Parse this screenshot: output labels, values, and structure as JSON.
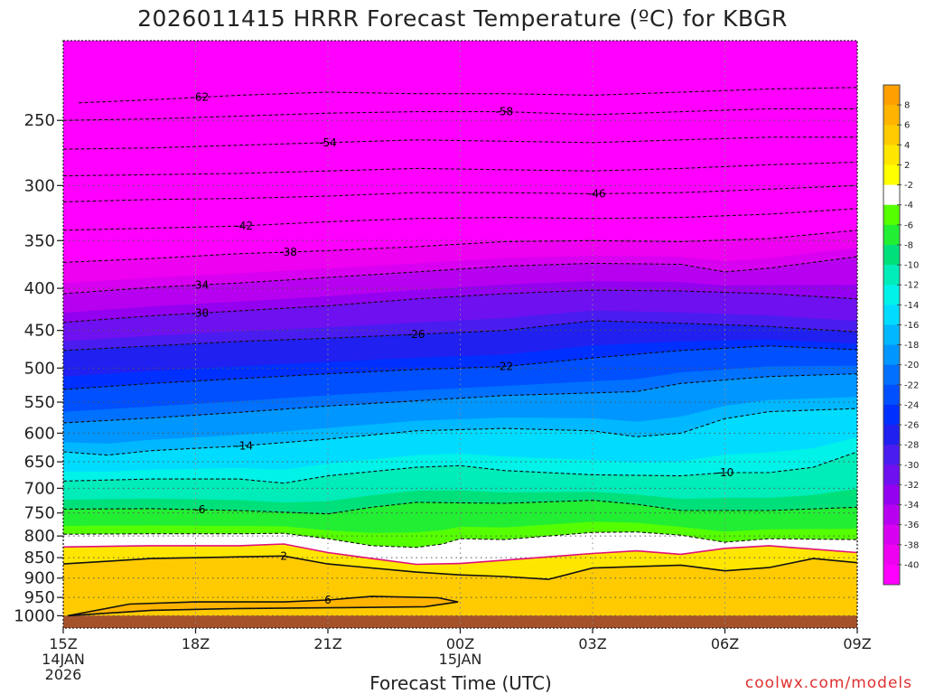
{
  "chart_data": {
    "type": "heatmap",
    "title": "2026011415 HRRR Forecast Temperature (ºC) for KBGR",
    "xlabel": "Forecast Time (UTC)",
    "ylabel": "",
    "credit": "coolwx.com/models",
    "x_ticks": [
      {
        "hour": 0,
        "label": "15Z",
        "sub": [
          "14JAN",
          "2026"
        ]
      },
      {
        "hour": 3,
        "label": "18Z",
        "sub": []
      },
      {
        "hour": 6,
        "label": "21Z",
        "sub": []
      },
      {
        "hour": 9,
        "label": "00Z",
        "sub": [
          "15JAN"
        ]
      },
      {
        "hour": 12,
        "label": "03Z",
        "sub": []
      },
      {
        "hour": 15,
        "label": "06Z",
        "sub": []
      },
      {
        "hour": 18,
        "label": "09Z",
        "sub": []
      }
    ],
    "xlim": [
      0,
      18
    ],
    "y_ticks": [
      250,
      300,
      350,
      400,
      450,
      500,
      550,
      600,
      650,
      700,
      750,
      800,
      850,
      900,
      950,
      1000
    ],
    "ylim": [
      1035,
      200
    ],
    "y_scale": "log",
    "colorbar": {
      "labels": [
        "8",
        "6",
        "4",
        "2",
        "-2",
        "-4",
        "-6",
        "-8",
        "-10",
        "-12",
        "-14",
        "-16",
        "-18",
        "-20",
        "-22",
        "-24",
        "-26",
        "-28",
        "-30",
        "-32",
        "-34",
        "-36",
        "-38",
        "-40"
      ],
      "colors": [
        "#ffa000",
        "#ffb400",
        "#ffcb00",
        "#ffe600",
        "#ffff00",
        "#ffffff",
        "#55ff00",
        "#22ee33",
        "#00e07a",
        "#00ecb8",
        "#00f2e8",
        "#00dcff",
        "#00b8ff",
        "#0096ff",
        "#0070ff",
        "#0050ff",
        "#0030ff",
        "#2020f0",
        "#4a1cf0",
        "#6e10f0",
        "#9400f0",
        "#b800f0",
        "#d800f0",
        "#ee00f0",
        "#ff00ff"
      ]
    },
    "contours": [
      {
        "label": "-62",
        "label_x": 3.1,
        "pts": [
          [
            0.35,
            238
          ],
          [
            2,
            236
          ],
          [
            4,
            233
          ],
          [
            6,
            231
          ],
          [
            8,
            232
          ],
          [
            10,
            232
          ],
          [
            12,
            233
          ],
          [
            14,
            231
          ],
          [
            16,
            229
          ],
          [
            18,
            228
          ]
        ]
      },
      {
        "label": "-58",
        "label_x": 10.0,
        "pts": [
          [
            0,
            250
          ],
          [
            2,
            249
          ],
          [
            4,
            247
          ],
          [
            6,
            245
          ],
          [
            8,
            244
          ],
          [
            10,
            244
          ],
          [
            12,
            246
          ],
          [
            14,
            244
          ],
          [
            16,
            242
          ],
          [
            18,
            242
          ]
        ]
      },
      {
        "label": "-54",
        "label_x": 6.0,
        "pts": [
          [
            0,
            271
          ],
          [
            2,
            270
          ],
          [
            4,
            268
          ],
          [
            6,
            266
          ],
          [
            8,
            264
          ],
          [
            10,
            265
          ],
          [
            12,
            266
          ],
          [
            14,
            264
          ],
          [
            16,
            262
          ],
          [
            18,
            262
          ]
        ]
      },
      {
        "label": "",
        "label_x": 0,
        "pts": [
          [
            0,
            292
          ],
          [
            2,
            291
          ],
          [
            4,
            290
          ],
          [
            6,
            288
          ],
          [
            8,
            286
          ],
          [
            10,
            287
          ],
          [
            12,
            288
          ],
          [
            14,
            286
          ],
          [
            16,
            283
          ],
          [
            18,
            281
          ]
        ]
      },
      {
        "label": "-46",
        "label_x": 12.1,
        "pts": [
          [
            0,
            314
          ],
          [
            2,
            312
          ],
          [
            4,
            311
          ],
          [
            6,
            309
          ],
          [
            8,
            306
          ],
          [
            10,
            306
          ],
          [
            12,
            307
          ],
          [
            14,
            306
          ],
          [
            16,
            303
          ],
          [
            18,
            300
          ]
        ]
      },
      {
        "label": "-42",
        "label_x": 4.1,
        "pts": [
          [
            0,
            340
          ],
          [
            2,
            338
          ],
          [
            4,
            336
          ],
          [
            6,
            332
          ],
          [
            8,
            329
          ],
          [
            10,
            328
          ],
          [
            12,
            329
          ],
          [
            14,
            328
          ],
          [
            16,
            325
          ],
          [
            18,
            320
          ]
        ]
      },
      {
        "label": "-38",
        "label_x": 5.1,
        "pts": [
          [
            0,
            372
          ],
          [
            2,
            368
          ],
          [
            4,
            363
          ],
          [
            6,
            360
          ],
          [
            8,
            356
          ],
          [
            10,
            351
          ],
          [
            12,
            350
          ],
          [
            14,
            351
          ],
          [
            16,
            348
          ],
          [
            18,
            340
          ]
        ]
      },
      {
        "label": "-34",
        "label_x": 3.1,
        "pts": [
          [
            0,
            406
          ],
          [
            2,
            399
          ],
          [
            4,
            394
          ],
          [
            6,
            388
          ],
          [
            8,
            382
          ],
          [
            10,
            376
          ],
          [
            12,
            373
          ],
          [
            14,
            374
          ],
          [
            15,
            382
          ],
          [
            16,
            378
          ],
          [
            18,
            366
          ]
        ]
      },
      {
        "label": "-30",
        "label_x": 3.1,
        "pts": [
          [
            0,
            440
          ],
          [
            2,
            432
          ],
          [
            4,
            426
          ],
          [
            6,
            420
          ],
          [
            8,
            412
          ],
          [
            10,
            406
          ],
          [
            12,
            402
          ],
          [
            14,
            403
          ],
          [
            16,
            406
          ],
          [
            18,
            412
          ]
        ]
      },
      {
        "label": "-26",
        "label_x": 8.0,
        "pts": [
          [
            0,
            476
          ],
          [
            2,
            470
          ],
          [
            4,
            464
          ],
          [
            6,
            460
          ],
          [
            8,
            455
          ],
          [
            10,
            450
          ],
          [
            12,
            438
          ],
          [
            14,
            441
          ],
          [
            16,
            445
          ],
          [
            18,
            452
          ]
        ]
      },
      {
        "label": "-22",
        "label_x": 10.0,
        "pts": [
          [
            0,
            531
          ],
          [
            2,
            522
          ],
          [
            4,
            515
          ],
          [
            6,
            508
          ],
          [
            8,
            502
          ],
          [
            10,
            498
          ],
          [
            11,
            492
          ],
          [
            12,
            486
          ],
          [
            14,
            476
          ],
          [
            16,
            470
          ],
          [
            18,
            475
          ]
        ]
      },
      {
        "label": "",
        "label_x": 0,
        "pts": [
          [
            0,
            583
          ],
          [
            2,
            575
          ],
          [
            4,
            566
          ],
          [
            6,
            556
          ],
          [
            8,
            548
          ],
          [
            10,
            540
          ],
          [
            12,
            536
          ],
          [
            13,
            534
          ],
          [
            14,
            522
          ],
          [
            16,
            512
          ],
          [
            18,
            508
          ]
        ]
      },
      {
        "label": "-14",
        "label_x": 4.1,
        "pts": [
          [
            0,
            632
          ],
          [
            1,
            638
          ],
          [
            2,
            630
          ],
          [
            4,
            622
          ],
          [
            6,
            610
          ],
          [
            8,
            596
          ],
          [
            10,
            592
          ],
          [
            12,
            596
          ],
          [
            13,
            606
          ],
          [
            14,
            600
          ],
          [
            15,
            576
          ],
          [
            16,
            565
          ],
          [
            18,
            560
          ]
        ]
      },
      {
        "label": "-10",
        "label_x": 15.0,
        "pts": [
          [
            0,
            686
          ],
          [
            2,
            682
          ],
          [
            4,
            682
          ],
          [
            5,
            690
          ],
          [
            6,
            676
          ],
          [
            8,
            660
          ],
          [
            9,
            657
          ],
          [
            10,
            666
          ],
          [
            12,
            674
          ],
          [
            14,
            676
          ],
          [
            15,
            670
          ],
          [
            16,
            670
          ],
          [
            17,
            660
          ],
          [
            18,
            632
          ]
        ]
      },
      {
        "label": "-6",
        "label_x": 3.1,
        "pts": [
          [
            0,
            742
          ],
          [
            2,
            741
          ],
          [
            4,
            745
          ],
          [
            6,
            752
          ],
          [
            7,
            738
          ],
          [
            8,
            728
          ],
          [
            10,
            730
          ],
          [
            12,
            724
          ],
          [
            13,
            732
          ],
          [
            14,
            745
          ],
          [
            16,
            745
          ],
          [
            18,
            738
          ]
        ]
      },
      {
        "label": "2",
        "label_x": 5.0,
        "pts": [
          [
            0,
            865
          ],
          [
            2,
            852
          ],
          [
            4,
            848
          ],
          [
            5,
            846
          ],
          [
            6,
            865
          ],
          [
            8,
            885
          ],
          [
            9,
            892
          ],
          [
            10,
            896
          ],
          [
            11,
            903
          ],
          [
            12,
            875
          ],
          [
            14,
            868
          ],
          [
            15,
            882
          ],
          [
            16,
            874
          ],
          [
            17,
            852
          ],
          [
            18,
            862
          ]
        ]
      },
      {
        "label": "6",
        "label_x": 6.0,
        "pts": [
          [
            0.1,
            1000
          ],
          [
            1.5,
            968
          ],
          [
            3,
            962
          ],
          [
            5,
            962
          ],
          [
            6,
            957
          ],
          [
            7,
            947
          ],
          [
            8.5,
            951
          ],
          [
            8.95,
            962
          ],
          [
            8.2,
            975
          ],
          [
            6,
            978
          ],
          [
            4,
            980
          ],
          [
            2,
            985
          ],
          [
            0.1,
            1000
          ]
        ]
      }
    ],
    "contour_freezing": [
      [
        0,
        825
      ],
      [
        2,
        822
      ],
      [
        4,
        822
      ],
      [
        5,
        818
      ],
      [
        6,
        838
      ],
      [
        7,
        852
      ],
      [
        8,
        866
      ],
      [
        9,
        864
      ],
      [
        10,
        856
      ],
      [
        11,
        848
      ],
      [
        12,
        840
      ],
      [
        13,
        834
      ],
      [
        14,
        842
      ],
      [
        15,
        828
      ],
      [
        16,
        822
      ],
      [
        18,
        838
      ]
    ],
    "contour_below_freezing": [
      [
        0,
        796
      ],
      [
        2,
        795
      ],
      [
        4,
        795
      ],
      [
        5,
        794
      ],
      [
        6,
        806
      ],
      [
        7,
        822
      ],
      [
        8,
        826
      ],
      [
        8.6,
        818
      ],
      [
        9,
        806
      ],
      [
        10,
        808
      ],
      [
        12,
        792
      ],
      [
        13,
        791
      ],
      [
        14,
        798
      ],
      [
        15,
        814
      ],
      [
        16,
        806
      ],
      [
        18,
        808
      ]
    ]
  }
}
